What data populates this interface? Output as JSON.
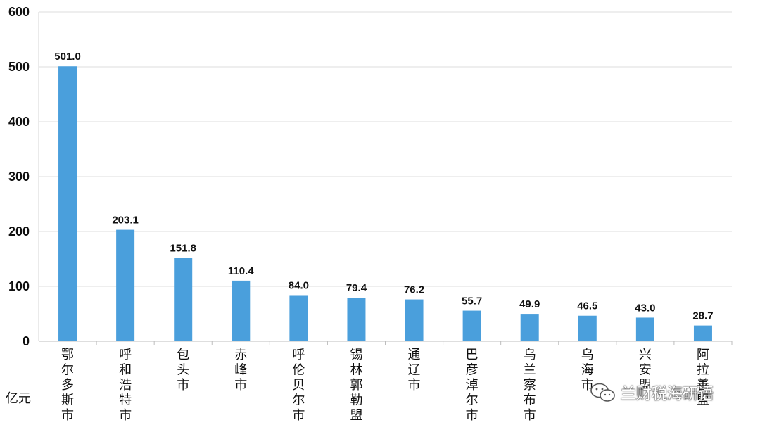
{
  "chart_data": {
    "type": "bar",
    "title": "",
    "xlabel": "",
    "ylabel": "亿元",
    "ylim": [
      0,
      600
    ],
    "yticks": [
      0,
      100,
      200,
      300,
      400,
      500,
      600
    ],
    "grid": true,
    "bar_color": "#4a9fdc",
    "categories": [
      "鄂尔多斯市",
      "呼和浩特市",
      "包头市",
      "赤峰市",
      "呼伦贝尔市",
      "锡林郭勒盟",
      "通辽市",
      "巴彦淖尔市",
      "乌兰察布市",
      "乌海市",
      "兴安盟",
      "阿拉善盟"
    ],
    "values": [
      501.0,
      203.1,
      151.8,
      110.4,
      84.0,
      79.4,
      76.2,
      55.7,
      49.9,
      46.5,
      43.0,
      28.7
    ],
    "data_labels": [
      "501.0",
      "203.1",
      "151.8",
      "110.4",
      "84.0",
      "79.4",
      "76.2",
      "55.7",
      "49.9",
      "46.5",
      "43.0",
      "28.7"
    ]
  },
  "watermark": {
    "text": "兰财税海研语",
    "icon": "wechat-icon"
  }
}
